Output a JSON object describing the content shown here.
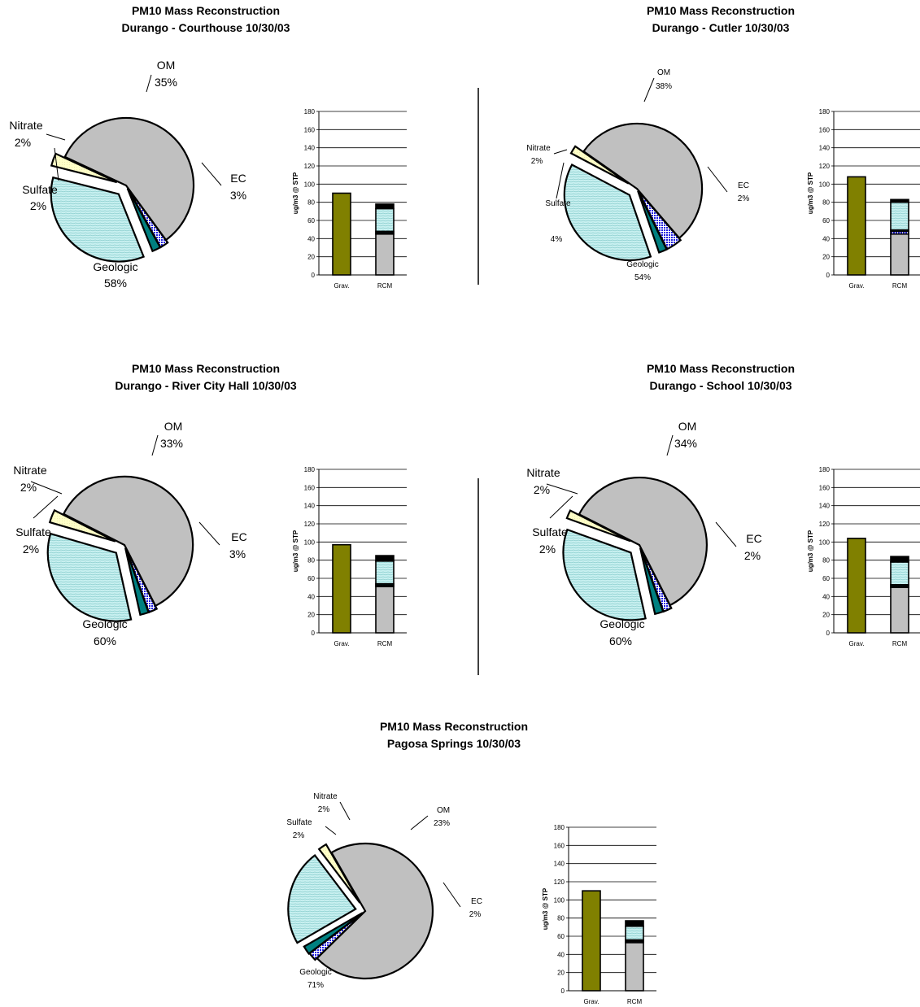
{
  "chart_data": [
    {
      "type": "pie",
      "title": "PM10 Mass Reconstruction",
      "subtitle": "Durango - Courthouse 10/30/03",
      "slices": [
        {
          "name": "Geologic",
          "value": 58,
          "label": "58%"
        },
        {
          "name": "Sulfate",
          "value": 2,
          "label": "2%"
        },
        {
          "name": "Nitrate",
          "value": 2,
          "label": "2%"
        },
        {
          "name": "OM",
          "value": 35,
          "label": "35%"
        },
        {
          "name": "EC",
          "value": 3,
          "label": "3%"
        }
      ],
      "bar": {
        "type": "bar",
        "ylabel": "ug/m3 @ STP",
        "ylim": [
          0,
          180
        ],
        "yticks": [
          0,
          20,
          40,
          60,
          80,
          100,
          120,
          140,
          160,
          180
        ],
        "categories": [
          "Grav.",
          "RCM"
        ],
        "grav": 90,
        "rcm": [
          {
            "name": "Geologic",
            "value": 45
          },
          {
            "name": "Sulfate",
            "value": 1.5
          },
          {
            "name": "Nitrate",
            "value": 1.5
          },
          {
            "name": "OM",
            "value": 25
          },
          {
            "name": "EC",
            "value": 5
          }
        ]
      }
    },
    {
      "type": "pie",
      "title": "PM10 Mass Reconstruction",
      "subtitle": "Durango - Cutler 10/30/03",
      "slices": [
        {
          "name": "Geologic",
          "value": 54,
          "label": "54%"
        },
        {
          "name": "Sulfate",
          "value": 4,
          "label": "4%"
        },
        {
          "name": "Nitrate",
          "value": 2,
          "label": "2%"
        },
        {
          "name": "OM",
          "value": 38,
          "label": "38%"
        },
        {
          "name": "EC",
          "value": 2,
          "label": "2%"
        }
      ],
      "bar": {
        "type": "bar",
        "ylabel": "ug/m3 @ STP",
        "ylim": [
          0,
          180
        ],
        "yticks": [
          0,
          20,
          40,
          60,
          80,
          100,
          120,
          140,
          160,
          180
        ],
        "categories": [
          "Grav.",
          "RCM"
        ],
        "grav": 108,
        "rcm": [
          {
            "name": "Geologic",
            "value": 45
          },
          {
            "name": "Sulfate",
            "value": 3
          },
          {
            "name": "Nitrate",
            "value": 1.5
          },
          {
            "name": "OM",
            "value": 30.5
          },
          {
            "name": "EC",
            "value": 3
          }
        ]
      }
    },
    {
      "type": "pie",
      "title": "PM10 Mass Reconstruction",
      "subtitle": "Durango - River City Hall 10/30/03",
      "slices": [
        {
          "name": "Geologic",
          "value": 60,
          "label": "60%"
        },
        {
          "name": "Sulfate",
          "value": 2,
          "label": "2%"
        },
        {
          "name": "Nitrate",
          "value": 2,
          "label": "2%"
        },
        {
          "name": "OM",
          "value": 33,
          "label": "33%"
        },
        {
          "name": "EC",
          "value": 3,
          "label": "3%"
        }
      ],
      "bar": {
        "type": "bar",
        "ylabel": "ug/m3 @ STP",
        "ylim": [
          0,
          180
        ],
        "yticks": [
          0,
          20,
          40,
          60,
          80,
          100,
          120,
          140,
          160,
          180
        ],
        "categories": [
          "Grav.",
          "RCM"
        ],
        "grav": 97,
        "rcm": [
          {
            "name": "Geologic",
            "value": 51
          },
          {
            "name": "Sulfate",
            "value": 1.5
          },
          {
            "name": "Nitrate",
            "value": 1.5
          },
          {
            "name": "OM",
            "value": 25
          },
          {
            "name": "EC",
            "value": 6
          }
        ]
      }
    },
    {
      "type": "pie",
      "title": "PM10 Mass Reconstruction",
      "subtitle": "Durango - School 10/30/03",
      "slices": [
        {
          "name": "Geologic",
          "value": 60,
          "label": "60%"
        },
        {
          "name": "Sulfate",
          "value": 2,
          "label": "2%"
        },
        {
          "name": "Nitrate",
          "value": 2,
          "label": "2%"
        },
        {
          "name": "OM",
          "value": 34,
          "label": "34%"
        },
        {
          "name": "EC",
          "value": 2,
          "label": "2%"
        }
      ],
      "bar": {
        "type": "bar",
        "ylabel": "ug/m3 @ STP",
        "ylim": [
          0,
          180
        ],
        "yticks": [
          0,
          20,
          40,
          60,
          80,
          100,
          120,
          140,
          160,
          180
        ],
        "categories": [
          "Grav.",
          "RCM"
        ],
        "grav": 104,
        "rcm": [
          {
            "name": "Geologic",
            "value": 50
          },
          {
            "name": "Sulfate",
            "value": 1.5
          },
          {
            "name": "Nitrate",
            "value": 1.5
          },
          {
            "name": "OM",
            "value": 25
          },
          {
            "name": "EC",
            "value": 6
          }
        ]
      }
    },
    {
      "type": "pie",
      "title": "PM10 Mass Reconstruction",
      "subtitle": "Pagosa Springs 10/30/03",
      "slices": [
        {
          "name": "Geologic",
          "value": 71,
          "label": "71%"
        },
        {
          "name": "Sulfate",
          "value": 2,
          "label": "2%"
        },
        {
          "name": "Nitrate",
          "value": 2,
          "label": "2%"
        },
        {
          "name": "OM",
          "value": 23,
          "label": "23%"
        },
        {
          "name": "EC",
          "value": 2,
          "label": "2%"
        }
      ],
      "bar": {
        "type": "bar",
        "ylabel": "ug/m3 @ STP",
        "ylim": [
          0,
          180
        ],
        "yticks": [
          0,
          20,
          40,
          60,
          80,
          100,
          120,
          140,
          160,
          180
        ],
        "categories": [
          "Grav.",
          "RCM"
        ],
        "grav": 110,
        "rcm": [
          {
            "name": "Geologic",
            "value": 53
          },
          {
            "name": "Sulfate",
            "value": 1.5
          },
          {
            "name": "Nitrate",
            "value": 1.5
          },
          {
            "name": "OM",
            "value": 15
          },
          {
            "name": "EC",
            "value": 6
          }
        ]
      }
    }
  ],
  "colors": {
    "Geologic": "#c0c0c0",
    "Sulfate": "#4040ff",
    "Nitrate": "#008080",
    "OM": "#c8f0f0",
    "EC": "#ffffc8",
    "Grav": "#808000",
    "outline": "#000000"
  }
}
